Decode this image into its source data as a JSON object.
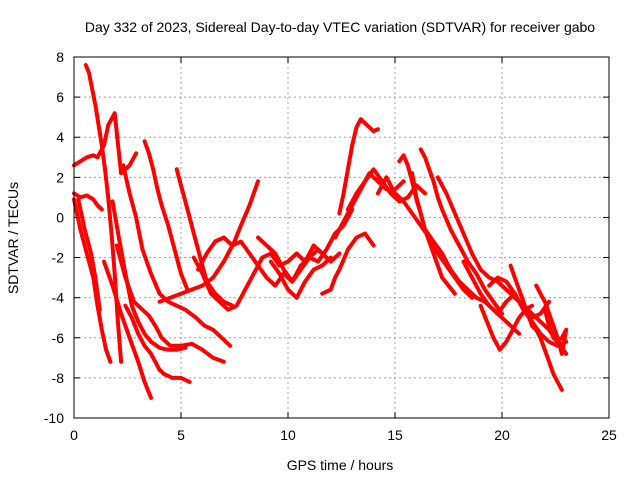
{
  "chart_data": {
    "type": "scatter",
    "title": "Day 332 of 2023, Sidereal Day-to-day VTEC variation (SDTVAR) for receiver gabo",
    "xlabel": "GPS time / hours",
    "ylabel": "SDTVAR / TECUs",
    "xlim": [
      0,
      25
    ],
    "ylim": [
      -10,
      8
    ],
    "xticks": [
      0,
      5,
      10,
      15,
      20,
      25
    ],
    "yticks": [
      -10,
      -8,
      -6,
      -4,
      -2,
      0,
      2,
      4,
      6,
      8
    ],
    "grid": true,
    "marker": "+",
    "color": "#ff0000",
    "series": [
      {
        "name": "s1",
        "x": [
          0.55,
          0.7,
          0.85,
          1.0,
          1.15,
          1.3,
          1.45,
          1.6,
          1.75,
          1.9,
          2.05,
          2.2
        ],
        "y": [
          7.6,
          7.2,
          6.4,
          5.6,
          4.6,
          3.6,
          2.4,
          1.0,
          -0.8,
          -2.8,
          -5.2,
          -7.2
        ]
      },
      {
        "name": "s2",
        "x": [
          0.0,
          0.3,
          0.6,
          0.9,
          1.1,
          1.4,
          1.6,
          1.9,
          2.2,
          2.6,
          2.9
        ],
        "y": [
          2.6,
          2.8,
          3.0,
          3.1,
          3.0,
          3.6,
          4.6,
          5.2,
          2.2,
          2.6,
          3.2
        ]
      },
      {
        "name": "s3",
        "x": [
          0.0,
          0.3,
          0.6,
          0.9,
          1.1,
          1.3
        ],
        "y": [
          1.2,
          1.0,
          1.1,
          0.9,
          0.6,
          0.4
        ]
      },
      {
        "name": "s4",
        "x": [
          0.0,
          0.3,
          0.6,
          0.9,
          1.1,
          1.3,
          1.5,
          1.7
        ],
        "y": [
          0.9,
          -0.6,
          -1.8,
          -3.0,
          -4.4,
          -5.6,
          -6.6,
          -7.2
        ]
      },
      {
        "name": "s5",
        "x": [
          0.2,
          0.5,
          0.8,
          1.0,
          1.2
        ],
        "y": [
          0.9,
          -0.6,
          -1.8,
          -3.0,
          -4.6
        ]
      },
      {
        "name": "s6",
        "x": [
          1.4,
          1.8,
          2.2,
          2.6,
          3.0,
          3.3,
          3.6
        ],
        "y": [
          -2.2,
          -3.4,
          -4.8,
          -6.0,
          -7.2,
          -8.2,
          -9.0
        ]
      },
      {
        "name": "s7",
        "x": [
          1.8,
          2.1,
          2.4,
          2.7,
          3.0,
          3.3,
          3.6,
          4.0,
          4.4,
          4.8,
          5.2
        ],
        "y": [
          0.8,
          -1.0,
          -2.8,
          -4.4,
          -5.2,
          -5.8,
          -6.2,
          -6.5,
          -6.6,
          -6.6,
          -6.5
        ]
      },
      {
        "name": "s8",
        "x": [
          2.0,
          2.4,
          2.8,
          3.2,
          3.5,
          3.8,
          4.1,
          4.5,
          5.0,
          5.5,
          6.0,
          6.5,
          7.0
        ],
        "y": [
          -1.4,
          -3.0,
          -4.2,
          -4.6,
          -4.9,
          -5.4,
          -6.0,
          -6.4,
          -6.4,
          -6.3,
          -6.6,
          -7.0,
          -7.2
        ]
      },
      {
        "name": "s9",
        "x": [
          2.4,
          2.7,
          3.0,
          3.3,
          3.6,
          3.8,
          4.0,
          4.2,
          4.6,
          5.0,
          5.4
        ],
        "y": [
          -4.4,
          -5.0,
          -5.8,
          -6.4,
          -6.8,
          -7.2,
          -7.6,
          -7.8,
          -8.0,
          -8.0,
          -8.2
        ]
      },
      {
        "name": "s10",
        "x": [
          2.3,
          2.6,
          2.9,
          3.2,
          3.6,
          4.0,
          4.4,
          4.8,
          5.2,
          5.7,
          6.1,
          6.5,
          6.9,
          7.3
        ],
        "y": [
          2.6,
          1.2,
          0.0,
          -1.6,
          -2.8,
          -3.8,
          -4.2,
          -4.4,
          -4.6,
          -5.0,
          -5.4,
          -5.6,
          -6.0,
          -6.4
        ]
      },
      {
        "name": "s11",
        "x": [
          3.3,
          3.5,
          3.7,
          3.9,
          4.1,
          4.4,
          4.7,
          5.0,
          5.3
        ],
        "y": [
          3.8,
          3.2,
          2.4,
          1.4,
          0.6,
          -0.4,
          -1.6,
          -2.8,
          -3.6
        ]
      },
      {
        "name": "s12",
        "x": [
          4.8,
          5.0,
          5.2,
          5.4,
          5.6,
          5.8,
          6.0,
          6.2,
          6.6,
          7.0,
          7.4
        ],
        "y": [
          2.4,
          1.6,
          0.8,
          0.0,
          -0.8,
          -1.6,
          -2.4,
          -3.2,
          -3.8,
          -4.2,
          -4.4
        ]
      },
      {
        "name": "s13",
        "x": [
          4.0,
          4.5,
          5.0,
          5.5,
          6.0,
          6.5,
          7.0,
          7.5,
          7.8,
          8.2,
          8.6
        ],
        "y": [
          -4.2,
          -4.0,
          -3.8,
          -3.6,
          -3.4,
          -3.0,
          -2.2,
          -1.2,
          -0.4,
          0.6,
          1.8
        ]
      },
      {
        "name": "s14",
        "x": [
          5.6,
          6.0,
          6.4,
          6.8,
          7.2,
          7.6,
          8.0,
          8.4,
          8.8,
          9.2,
          9.6,
          10.0,
          10.4,
          10.8,
          11.2,
          11.6,
          12.0,
          12.4
        ],
        "y": [
          -2.0,
          -2.8,
          -3.8,
          -4.2,
          -4.6,
          -4.4,
          -3.6,
          -2.8,
          -2.0,
          -1.8,
          -2.4,
          -2.2,
          -1.8,
          -2.2,
          -1.4,
          -1.8,
          -2.2,
          -1.8
        ]
      },
      {
        "name": "s15",
        "x": [
          5.8,
          6.2,
          6.6,
          7.0,
          7.4,
          7.8,
          8.2,
          8.6,
          9.0,
          9.4,
          9.8,
          10.2,
          10.6,
          11.0,
          11.4,
          11.8,
          12.2,
          12.6,
          13.0
        ],
        "y": [
          -2.6,
          -1.8,
          -1.2,
          -1.0,
          -1.4,
          -1.2,
          -1.8,
          -2.4,
          -3.0,
          -3.4,
          -2.8,
          -3.2,
          -2.6,
          -2.0,
          -2.2,
          -1.6,
          -0.8,
          -0.4,
          0.4
        ]
      },
      {
        "name": "s16",
        "x": [
          8.6,
          9.0,
          9.4,
          9.8,
          10.2,
          10.6,
          11.0,
          11.4,
          11.8
        ],
        "y": [
          -1.0,
          -1.4,
          -1.8,
          -2.6,
          -3.2,
          -2.4,
          -2.0,
          -1.6,
          -2.0
        ]
      },
      {
        "name": "s17",
        "x": [
          9.2,
          9.6,
          10.0,
          10.4,
          10.8,
          11.2,
          11.6,
          12.0
        ],
        "y": [
          -2.2,
          -2.8,
          -3.6,
          -4.0,
          -3.2,
          -2.6,
          -2.4,
          -2.0
        ]
      },
      {
        "name": "s18",
        "x": [
          11.6,
          12.0,
          12.2,
          12.4,
          12.8,
          13.2,
          13.6,
          14.0
        ],
        "y": [
          -3.8,
          -3.6,
          -3.0,
          -2.6,
          -1.6,
          -1.0,
          -0.8,
          -1.4
        ]
      },
      {
        "name": "s19",
        "x": [
          12.4,
          12.6,
          12.8,
          13.0,
          13.2,
          13.4,
          13.6,
          13.8,
          14.0,
          14.2
        ],
        "y": [
          0.2,
          1.2,
          2.4,
          3.6,
          4.5,
          4.9,
          4.7,
          4.5,
          4.3,
          4.4
        ]
      },
      {
        "name": "s20",
        "x": [
          12.2,
          12.6,
          13.0,
          13.4,
          13.8,
          14.2,
          14.6,
          15.0,
          15.4
        ],
        "y": [
          -1.0,
          -0.2,
          0.6,
          1.4,
          2.2,
          1.8,
          1.4,
          1.4,
          1.8
        ]
      },
      {
        "name": "s21",
        "x": [
          12.8,
          13.2,
          13.6,
          14.0,
          14.4,
          14.8,
          15.2,
          15.6,
          16.0,
          16.4
        ],
        "y": [
          0.4,
          1.2,
          1.8,
          2.4,
          1.8,
          1.2,
          0.8,
          1.0,
          1.6,
          1.2
        ]
      },
      {
        "name": "s22",
        "x": [
          14.2,
          14.6,
          15.0,
          15.4,
          15.8,
          16.2,
          16.6,
          17.0,
          17.4,
          17.8,
          18.2,
          18.6
        ],
        "y": [
          1.2,
          2.0,
          1.2,
          0.8,
          0.2,
          -0.4,
          -1.0,
          -1.8,
          -2.4,
          -3.0,
          -3.6,
          -4.0
        ]
      },
      {
        "name": "s23",
        "x": [
          15.2,
          15.4,
          15.6,
          15.8,
          16.0,
          16.2,
          16.4,
          16.6,
          16.8,
          17.0,
          17.2,
          17.5,
          17.8
        ],
        "y": [
          2.8,
          3.1,
          2.6,
          1.8,
          0.9,
          0.2,
          -0.6,
          -1.2,
          -1.8,
          -2.4,
          -3.0,
          -3.4,
          -3.8
        ]
      },
      {
        "name": "s24",
        "x": [
          15.8,
          16.0,
          16.2,
          16.4,
          16.8,
          17.2,
          17.6,
          18.0,
          18.4,
          18.8,
          19.2,
          19.6,
          20.0,
          20.4,
          20.8
        ],
        "y": [
          2.2,
          1.0,
          0.2,
          -0.6,
          -1.2,
          -1.8,
          -2.6,
          -3.2,
          -3.6,
          -4.0,
          -4.2,
          -4.6,
          -5.0,
          -5.4,
          -5.8
        ]
      },
      {
        "name": "s25",
        "x": [
          16.2,
          16.4,
          16.6,
          16.8,
          17.0,
          17.2,
          17.6,
          18.0,
          18.4,
          18.8,
          19.2,
          19.6,
          20.0
        ],
        "y": [
          3.4,
          3.0,
          2.4,
          1.8,
          1.0,
          0.4,
          -0.6,
          -1.4,
          -2.2,
          -2.8,
          -3.6,
          -4.2,
          -4.8
        ]
      },
      {
        "name": "s26",
        "x": [
          17.0,
          17.4,
          17.8,
          18.2,
          18.6,
          19.0,
          19.4,
          19.8,
          20.2,
          20.6,
          21.0,
          21.4,
          21.8,
          22.2,
          22.6,
          23.0
        ],
        "y": [
          2.0,
          1.2,
          0.2,
          -0.8,
          -1.8,
          -2.6,
          -3.0,
          -3.2,
          -3.6,
          -4.0,
          -4.4,
          -4.8,
          -5.2,
          -5.6,
          -6.2,
          -6.8
        ]
      },
      {
        "name": "s27",
        "x": [
          18.2,
          18.6,
          19.0,
          19.4,
          19.8,
          20.2,
          20.6,
          21.0,
          21.4,
          21.8,
          22.2,
          22.6,
          23.0
        ],
        "y": [
          -2.2,
          -3.0,
          -3.8,
          -4.4,
          -4.8,
          -4.2,
          -3.8,
          -4.6,
          -5.2,
          -5.8,
          -6.2,
          -6.4,
          -6.2
        ]
      },
      {
        "name": "s28",
        "x": [
          19.0,
          19.3,
          19.6,
          19.9,
          20.2,
          20.5,
          20.8,
          21.1,
          21.4
        ],
        "y": [
          -4.4,
          -5.2,
          -6.0,
          -6.6,
          -6.2,
          -5.6,
          -5.0,
          -4.6,
          -4.4
        ]
      },
      {
        "name": "s29",
        "x": [
          19.4,
          19.8,
          20.2,
          20.6,
          21.0,
          21.4,
          21.8,
          22.2
        ],
        "y": [
          -3.4,
          -3.0,
          -3.2,
          -3.8,
          -4.6,
          -5.0,
          -4.8,
          -4.2
        ]
      },
      {
        "name": "s30",
        "x": [
          20.4,
          20.6,
          20.8,
          21.0,
          21.2,
          21.4,
          21.6,
          21.8,
          22.0,
          22.2,
          22.4,
          22.6,
          22.8
        ],
        "y": [
          -2.4,
          -3.0,
          -3.6,
          -4.2,
          -4.8,
          -5.4,
          -5.6,
          -6.0,
          -6.6,
          -7.2,
          -7.8,
          -8.2,
          -8.6
        ]
      },
      {
        "name": "s31",
        "x": [
          21.6,
          21.8,
          22.0,
          22.2,
          22.4,
          22.6,
          22.8,
          23.0
        ],
        "y": [
          -3.4,
          -3.8,
          -4.2,
          -4.8,
          -5.4,
          -6.0,
          -6.8,
          -5.6
        ]
      },
      {
        "name": "s32",
        "x": [
          22.0,
          22.2,
          22.4,
          22.6,
          22.8,
          23.0
        ],
        "y": [
          -4.6,
          -5.4,
          -6.0,
          -6.2,
          -6.0,
          -5.6
        ]
      }
    ]
  }
}
